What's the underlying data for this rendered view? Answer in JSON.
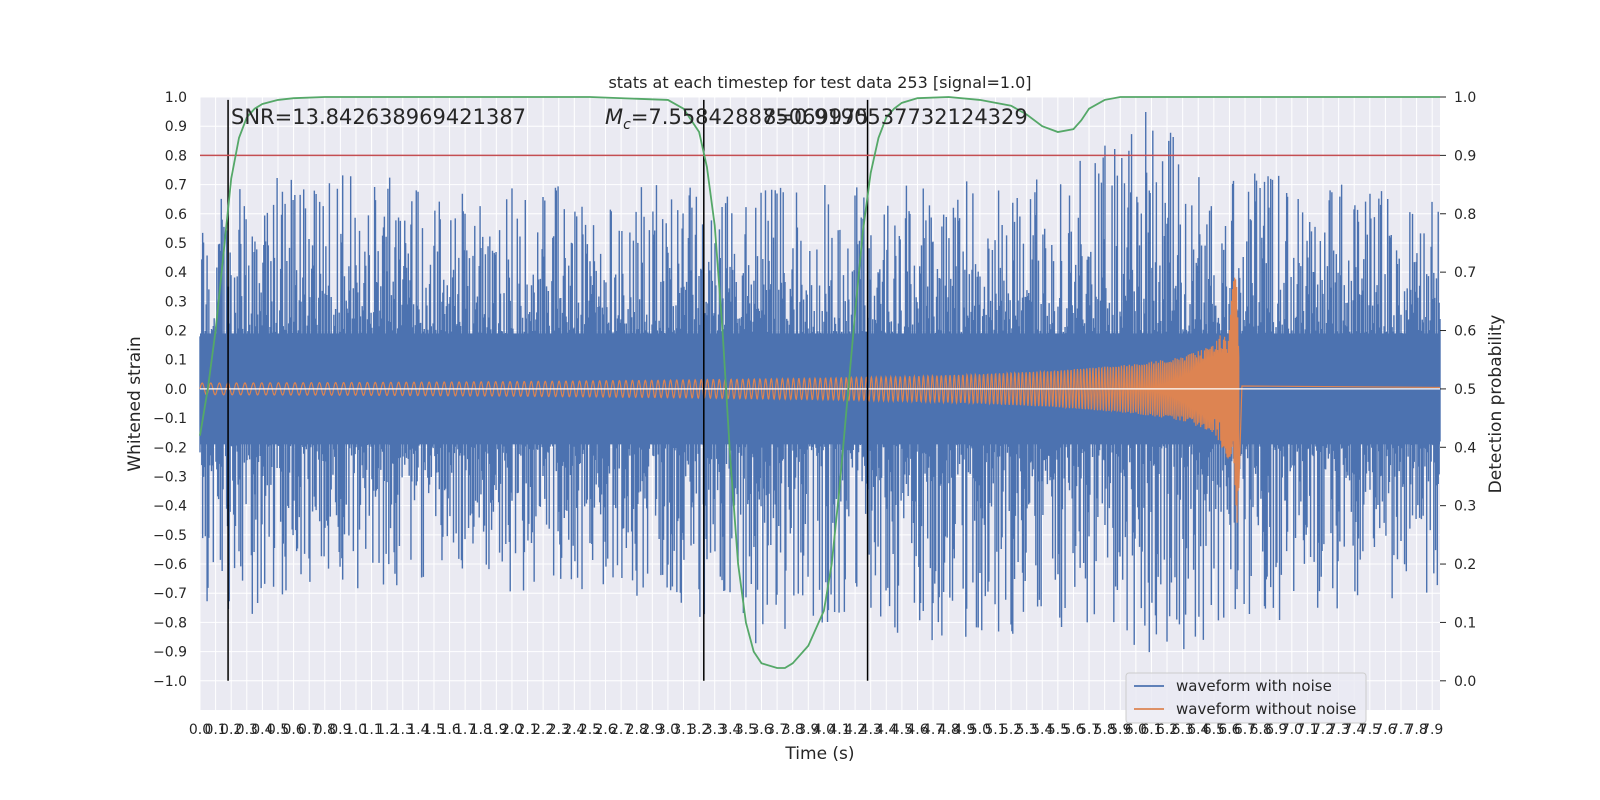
{
  "chart_data": {
    "type": "line",
    "title": "stats at each timestep for test data 253 [signal=1.0]",
    "xlabel": "Time (s)",
    "ylabel": "Whitened strain",
    "ylabel_right": "Detection probability",
    "xlim": [
      0.0,
      7.95
    ],
    "ylim": [
      -1.1,
      1.0
    ],
    "ylim_right": [
      -0.05,
      1.0
    ],
    "x_ticks": [
      "0.0",
      "0.1",
      "0.2",
      "0.3",
      "0.4",
      "0.5",
      "0.6",
      "0.7",
      "0.8",
      "0.9",
      "1.0",
      "1.1",
      "1.2",
      "1.3",
      "1.4",
      "1.5",
      "1.6",
      "1.7",
      "1.8",
      "1.9",
      "2.0",
      "2.1",
      "2.2",
      "2.3",
      "2.4",
      "2.5",
      "2.6",
      "2.7",
      "2.8",
      "2.9",
      "3.0",
      "3.1",
      "3.2",
      "3.3",
      "3.4",
      "3.5",
      "3.6",
      "3.7",
      "3.8",
      "3.9",
      "4.0",
      "4.1",
      "4.2",
      "4.3",
      "4.4",
      "4.5",
      "4.6",
      "4.7",
      "4.8",
      "4.9",
      "5.0",
      "5.1",
      "5.2",
      "5.3",
      "5.4",
      "5.5",
      "5.6",
      "5.7",
      "5.8",
      "5.9",
      "6.0",
      "6.1",
      "6.2",
      "6.3",
      "6.4",
      "6.5",
      "6.6",
      "6.7",
      "6.8",
      "6.9",
      "7.0",
      "7.1",
      "7.2",
      "7.3",
      "7.4",
      "7.5",
      "7.6",
      "7.7",
      "7.8",
      "7.9"
    ],
    "y_ticks": [
      "1.0",
      "0.9",
      "0.8",
      "0.7",
      "0.6",
      "0.5",
      "0.4",
      "0.3",
      "0.2",
      "0.1",
      "0.0",
      "−0.1",
      "−0.2",
      "−0.3",
      "−0.4",
      "−0.5",
      "−0.6",
      "−0.7",
      "−0.8",
      "−0.9",
      "−1.0"
    ],
    "y_ticks_right": [
      "1.0",
      "0.9",
      "0.8",
      "0.7",
      "0.6",
      "0.5",
      "0.4",
      "0.3",
      "0.2",
      "0.1",
      "0.0"
    ],
    "grid": true,
    "legend_position": "lower-right",
    "annotations": {
      "snr": "SNR=13.842638969421387",
      "mc_symbol": "M",
      "mc_sub": "c",
      "mc_value": "=7.558428875069975",
      "overlap": "8=0.9190537732124329"
    },
    "series": [
      {
        "name": "waveform with noise",
        "color": "#4c72b0",
        "description_type": "noise envelope",
        "x": [
          0.0,
          0.5,
          1.0,
          1.5,
          2.0,
          2.5,
          3.0,
          3.5,
          4.0,
          4.5,
          5.0,
          5.5,
          6.0,
          6.5,
          7.0,
          7.5,
          7.95
        ],
        "upper": [
          0.62,
          0.75,
          0.78,
          0.66,
          0.7,
          0.7,
          0.72,
          0.68,
          0.7,
          0.7,
          0.72,
          0.73,
          0.99,
          0.78,
          0.72,
          0.7,
          0.65
        ],
        "lower": [
          -0.8,
          -0.76,
          -0.7,
          -0.66,
          -0.7,
          -0.7,
          -0.72,
          -0.9,
          -0.8,
          -0.86,
          -0.88,
          -0.82,
          -0.92,
          -0.88,
          -0.78,
          -0.74,
          -0.7
        ]
      },
      {
        "name": "waveform without noise",
        "color": "#dd8452",
        "x": [
          0.0,
          1.0,
          2.0,
          3.0,
          4.0,
          4.5,
          5.0,
          5.5,
          6.0,
          6.3,
          6.5,
          6.6,
          6.65,
          6.67,
          7.95
        ],
        "amplitude": [
          0.02,
          0.022,
          0.025,
          0.03,
          0.037,
          0.042,
          0.05,
          0.063,
          0.085,
          0.11,
          0.15,
          0.25,
          0.48,
          0.01,
          0.005
        ]
      },
      {
        "name": "detection probability",
        "axis": "right",
        "color": "#55a868",
        "x": [
          0.0,
          0.05,
          0.1,
          0.15,
          0.2,
          0.25,
          0.3,
          0.35,
          0.4,
          0.5,
          0.6,
          0.8,
          1.0,
          1.5,
          2.0,
          2.5,
          3.0,
          3.1,
          3.2,
          3.25,
          3.3,
          3.35,
          3.4,
          3.45,
          3.5,
          3.55,
          3.6,
          3.7,
          3.75,
          3.8,
          3.9,
          4.0,
          4.05,
          4.1,
          4.15,
          4.2,
          4.25,
          4.3,
          4.35,
          4.4,
          4.45,
          4.5,
          4.6,
          4.8,
          5.0,
          5.2,
          5.3,
          5.4,
          5.5,
          5.6,
          5.65,
          5.7,
          5.8,
          5.9,
          6.0,
          6.5,
          7.0,
          7.5,
          7.95
        ],
        "values": [
          0.42,
          0.5,
          0.6,
          0.73,
          0.86,
          0.93,
          0.965,
          0.98,
          0.988,
          0.995,
          0.998,
          1.0,
          1.0,
          1.0,
          1.0,
          1.0,
          0.995,
          0.98,
          0.94,
          0.88,
          0.78,
          0.6,
          0.38,
          0.2,
          0.1,
          0.05,
          0.03,
          0.022,
          0.022,
          0.03,
          0.06,
          0.12,
          0.2,
          0.33,
          0.48,
          0.63,
          0.77,
          0.87,
          0.93,
          0.965,
          0.98,
          0.99,
          0.998,
          1.0,
          0.995,
          0.985,
          0.97,
          0.95,
          0.94,
          0.945,
          0.96,
          0.98,
          0.995,
          1.0,
          1.0,
          1.0,
          1.0,
          1.0,
          1.0
        ]
      }
    ],
    "threshold_line": {
      "axis": "right",
      "value": 0.9,
      "color": "#c44e52"
    },
    "vertical_markers": [
      {
        "x": 0.18,
        "y_range": [
          -1.0,
          0.99
        ]
      },
      {
        "x": 3.23,
        "y_range": [
          -1.0,
          0.99
        ]
      },
      {
        "x": 4.28,
        "y_range": [
          -1.0,
          0.99
        ]
      }
    ]
  }
}
